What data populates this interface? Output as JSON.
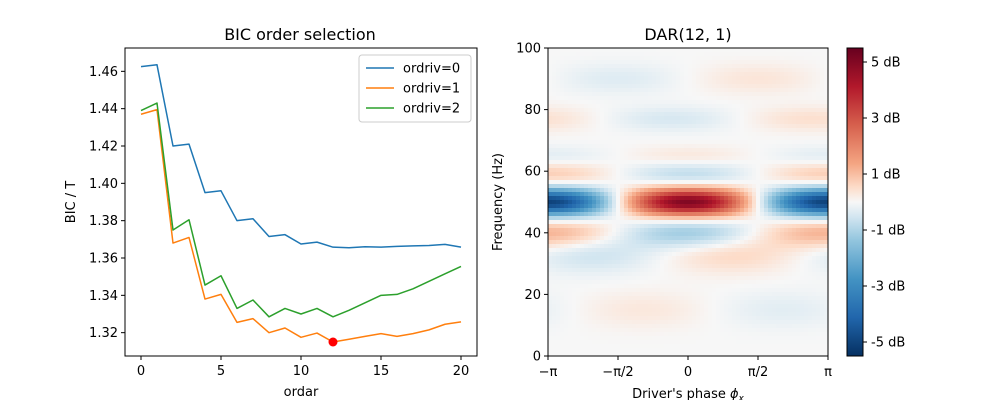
{
  "chart_data": [
    {
      "type": "line",
      "title": "BIC order selection",
      "xlabel": "ordar",
      "ylabel": "BIC / T",
      "xlim": [
        -1,
        21
      ],
      "ylim": [
        1.3075,
        1.4725
      ],
      "xticks": [
        0,
        5,
        10,
        15,
        20
      ],
      "yticks": [
        1.32,
        1.34,
        1.36,
        1.38,
        1.4,
        1.42,
        1.44,
        1.46
      ],
      "legend_position": "top-right",
      "x": [
        0,
        1,
        2,
        3,
        4,
        5,
        6,
        7,
        8,
        9,
        10,
        11,
        12,
        13,
        14,
        15,
        16,
        17,
        18,
        19,
        20
      ],
      "series": [
        {
          "name": "ordriv=0",
          "color": "#1f77b4",
          "values": [
            1.4625,
            1.4635,
            1.42,
            1.421,
            1.395,
            1.396,
            1.38,
            1.381,
            1.3715,
            1.3725,
            1.3675,
            1.3685,
            1.3658,
            1.3655,
            1.366,
            1.3658,
            1.3662,
            1.3665,
            1.3667,
            1.3673,
            1.3658
          ]
        },
        {
          "name": "ordriv=1",
          "color": "#ff7f0e",
          "values": [
            1.437,
            1.4395,
            1.368,
            1.371,
            1.338,
            1.3405,
            1.3255,
            1.3275,
            1.32,
            1.3225,
            1.3175,
            1.3198,
            1.315,
            1.3165,
            1.318,
            1.3195,
            1.318,
            1.3195,
            1.3215,
            1.3245,
            1.3258
          ]
        },
        {
          "name": "ordriv=2",
          "color": "#2ca02c",
          "values": [
            1.439,
            1.443,
            1.375,
            1.3805,
            1.3455,
            1.3505,
            1.333,
            1.3375,
            1.3285,
            1.333,
            1.33,
            1.333,
            1.3285,
            1.332,
            1.336,
            1.34,
            1.3405,
            1.3435,
            1.3475,
            1.3515,
            1.3555
          ]
        }
      ],
      "highlight": {
        "x": 12,
        "y": 1.315,
        "color": "#ff0000"
      }
    },
    {
      "type": "heatmap",
      "title": "DAR(12, 1)",
      "xlabel": "Driver's phase ",
      "xlabel_symbol": "ϕ",
      "xlabel_subscript": "x",
      "ylabel": "Frequency (Hz)",
      "xlim": [
        -3.14159,
        3.14159
      ],
      "ylim": [
        0,
        100
      ],
      "xtick_labels": [
        "−π",
        "−π/2",
        "0",
        "π/2",
        "π"
      ],
      "xtick_values": [
        -3.14159,
        -1.5708,
        0,
        1.5708,
        3.14159
      ],
      "yticks": [
        0,
        20,
        40,
        60,
        80,
        100
      ],
      "colormap": "RdBu_r",
      "colorbar_range": [
        -5.5,
        5.5
      ],
      "colorbar_ticks": [
        5,
        3,
        1,
        -1,
        -3,
        -5
      ],
      "colorbar_labels": [
        "5 dB",
        "3 dB",
        "1 dB",
        "-1 dB",
        "-3 dB",
        "-5 dB"
      ]
    }
  ]
}
